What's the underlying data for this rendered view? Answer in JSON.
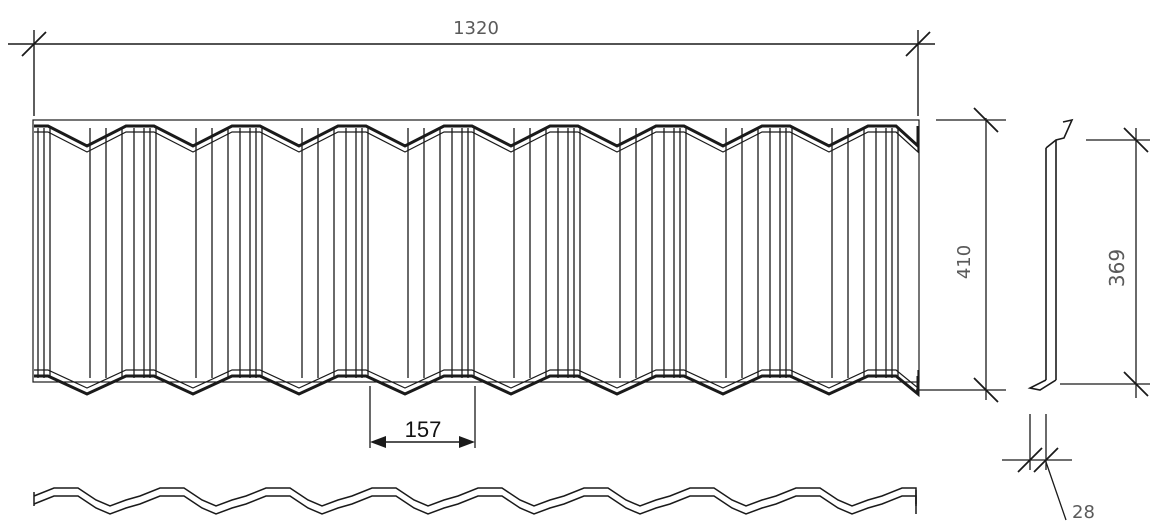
{
  "dimensions": {
    "overall_length": "1320",
    "tile_height": "410",
    "side_height": "369",
    "pitch": "157",
    "profile_depth": "28"
  },
  "colors": {
    "line": "#1a1a1a",
    "dimension_text": "#5a5a5a",
    "dark_text": "#111111"
  }
}
